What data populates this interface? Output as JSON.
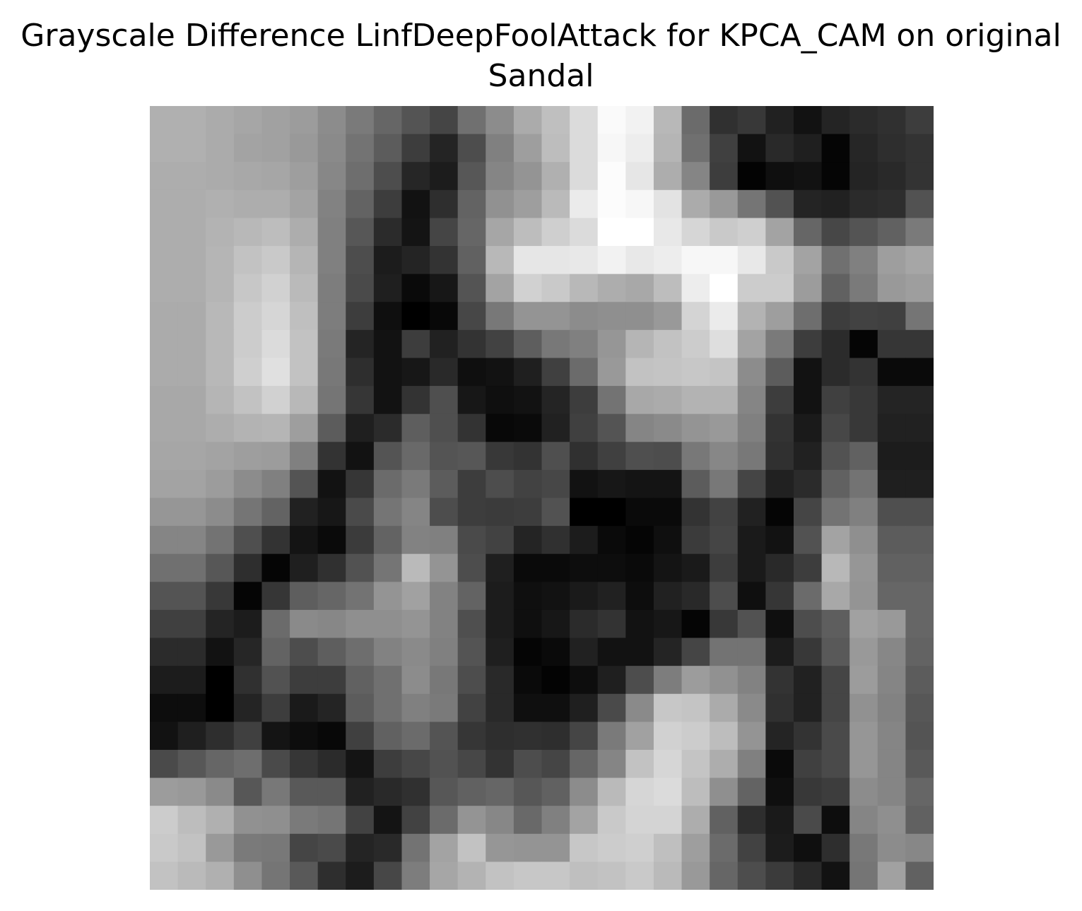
{
  "chart_data": {
    "type": "heatmap",
    "title": "Grayscale Difference LinfDeepFoolAttack for KPCA_CAM on original Sandal",
    "colormap": "gray",
    "axes_visible": false,
    "rows": 28,
    "cols": 28,
    "values": [
      [
        0.69,
        0.69,
        0.67,
        0.65,
        0.63,
        0.61,
        0.55,
        0.48,
        0.4,
        0.33,
        0.27,
        0.44,
        0.55,
        0.67,
        0.75,
        0.86,
        0.98,
        0.95,
        0.72,
        0.42,
        0.19,
        0.22,
        0.13,
        0.07,
        0.14,
        0.17,
        0.19,
        0.24
      ],
      [
        0.69,
        0.69,
        0.67,
        0.64,
        0.63,
        0.6,
        0.54,
        0.45,
        0.36,
        0.24,
        0.14,
        0.3,
        0.5,
        0.62,
        0.74,
        0.86,
        0.97,
        0.93,
        0.71,
        0.44,
        0.25,
        0.07,
        0.16,
        0.12,
        0.02,
        0.15,
        0.18,
        0.2
      ],
      [
        0.68,
        0.68,
        0.67,
        0.66,
        0.65,
        0.62,
        0.53,
        0.43,
        0.3,
        0.15,
        0.11,
        0.34,
        0.52,
        0.58,
        0.69,
        0.86,
        0.99,
        0.9,
        0.68,
        0.52,
        0.24,
        0.01,
        0.06,
        0.07,
        0.02,
        0.14,
        0.16,
        0.2
      ],
      [
        0.68,
        0.68,
        0.69,
        0.68,
        0.68,
        0.64,
        0.51,
        0.39,
        0.24,
        0.07,
        0.18,
        0.39,
        0.57,
        0.62,
        0.73,
        0.92,
        0.99,
        0.97,
        0.89,
        0.67,
        0.6,
        0.46,
        0.32,
        0.14,
        0.13,
        0.17,
        0.18,
        0.32
      ],
      [
        0.68,
        0.68,
        0.7,
        0.72,
        0.74,
        0.68,
        0.5,
        0.34,
        0.17,
        0.08,
        0.27,
        0.4,
        0.65,
        0.74,
        0.81,
        0.86,
        1.0,
        1.0,
        0.91,
        0.84,
        0.79,
        0.81,
        0.64,
        0.4,
        0.28,
        0.33,
        0.38,
        0.48
      ],
      [
        0.68,
        0.68,
        0.71,
        0.76,
        0.79,
        0.71,
        0.5,
        0.3,
        0.11,
        0.14,
        0.2,
        0.38,
        0.72,
        0.9,
        0.9,
        0.91,
        0.95,
        0.91,
        0.93,
        0.97,
        0.97,
        0.91,
        0.79,
        0.64,
        0.44,
        0.5,
        0.62,
        0.65
      ],
      [
        0.68,
        0.68,
        0.71,
        0.78,
        0.82,
        0.73,
        0.49,
        0.29,
        0.12,
        0.04,
        0.09,
        0.33,
        0.64,
        0.82,
        0.79,
        0.72,
        0.68,
        0.66,
        0.74,
        0.93,
        1.0,
        0.8,
        0.8,
        0.61,
        0.38,
        0.48,
        0.6,
        0.62
      ],
      [
        0.67,
        0.67,
        0.72,
        0.8,
        0.84,
        0.75,
        0.49,
        0.24,
        0.06,
        0.0,
        0.03,
        0.28,
        0.47,
        0.58,
        0.58,
        0.55,
        0.56,
        0.56,
        0.6,
        0.83,
        0.92,
        0.7,
        0.62,
        0.43,
        0.24,
        0.26,
        0.25,
        0.46
      ],
      [
        0.67,
        0.67,
        0.72,
        0.8,
        0.86,
        0.76,
        0.48,
        0.14,
        0.07,
        0.24,
        0.13,
        0.2,
        0.26,
        0.37,
        0.47,
        0.5,
        0.59,
        0.71,
        0.76,
        0.8,
        0.87,
        0.64,
        0.48,
        0.24,
        0.17,
        0.02,
        0.21,
        0.21
      ],
      [
        0.67,
        0.67,
        0.72,
        0.81,
        0.88,
        0.76,
        0.47,
        0.18,
        0.07,
        0.09,
        0.16,
        0.06,
        0.07,
        0.12,
        0.25,
        0.42,
        0.6,
        0.76,
        0.77,
        0.78,
        0.77,
        0.55,
        0.36,
        0.07,
        0.17,
        0.2,
        0.04,
        0.04
      ],
      [
        0.66,
        0.66,
        0.71,
        0.76,
        0.82,
        0.72,
        0.46,
        0.21,
        0.07,
        0.2,
        0.31,
        0.09,
        0.06,
        0.07,
        0.14,
        0.24,
        0.45,
        0.66,
        0.67,
        0.7,
        0.7,
        0.52,
        0.24,
        0.07,
        0.25,
        0.22,
        0.14,
        0.14
      ],
      [
        0.66,
        0.66,
        0.68,
        0.7,
        0.71,
        0.62,
        0.36,
        0.12,
        0.17,
        0.37,
        0.31,
        0.2,
        0.03,
        0.04,
        0.13,
        0.25,
        0.33,
        0.52,
        0.54,
        0.58,
        0.6,
        0.5,
        0.2,
        0.1,
        0.28,
        0.22,
        0.13,
        0.13
      ],
      [
        0.65,
        0.65,
        0.64,
        0.62,
        0.61,
        0.5,
        0.2,
        0.07,
        0.33,
        0.41,
        0.33,
        0.34,
        0.22,
        0.2,
        0.31,
        0.19,
        0.25,
        0.31,
        0.3,
        0.47,
        0.53,
        0.47,
        0.19,
        0.13,
        0.32,
        0.38,
        0.11,
        0.11
      ],
      [
        0.64,
        0.64,
        0.61,
        0.55,
        0.5,
        0.33,
        0.07,
        0.21,
        0.42,
        0.48,
        0.36,
        0.24,
        0.3,
        0.26,
        0.28,
        0.07,
        0.09,
        0.08,
        0.08,
        0.36,
        0.47,
        0.27,
        0.13,
        0.17,
        0.38,
        0.45,
        0.12,
        0.12
      ],
      [
        0.59,
        0.59,
        0.55,
        0.46,
        0.39,
        0.13,
        0.09,
        0.29,
        0.46,
        0.52,
        0.3,
        0.24,
        0.23,
        0.24,
        0.32,
        0.0,
        0.0,
        0.04,
        0.04,
        0.2,
        0.26,
        0.13,
        0.02,
        0.27,
        0.45,
        0.5,
        0.31,
        0.31
      ],
      [
        0.52,
        0.52,
        0.45,
        0.31,
        0.2,
        0.08,
        0.04,
        0.23,
        0.39,
        0.51,
        0.5,
        0.29,
        0.26,
        0.14,
        0.19,
        0.11,
        0.04,
        0.02,
        0.06,
        0.23,
        0.27,
        0.1,
        0.07,
        0.32,
        0.64,
        0.56,
        0.36,
        0.36
      ],
      [
        0.44,
        0.44,
        0.34,
        0.18,
        0.02,
        0.12,
        0.19,
        0.32,
        0.46,
        0.73,
        0.58,
        0.3,
        0.12,
        0.04,
        0.04,
        0.05,
        0.05,
        0.04,
        0.08,
        0.1,
        0.24,
        0.1,
        0.16,
        0.24,
        0.72,
        0.59,
        0.38,
        0.38
      ],
      [
        0.33,
        0.33,
        0.22,
        0.02,
        0.21,
        0.37,
        0.4,
        0.45,
        0.58,
        0.63,
        0.51,
        0.39,
        0.11,
        0.06,
        0.07,
        0.1,
        0.13,
        0.05,
        0.13,
        0.16,
        0.3,
        0.06,
        0.21,
        0.42,
        0.66,
        0.58,
        0.4,
        0.4
      ],
      [
        0.25,
        0.25,
        0.14,
        0.11,
        0.42,
        0.54,
        0.53,
        0.56,
        0.56,
        0.58,
        0.51,
        0.31,
        0.11,
        0.06,
        0.09,
        0.17,
        0.2,
        0.07,
        0.09,
        0.02,
        0.22,
        0.32,
        0.06,
        0.3,
        0.37,
        0.63,
        0.6,
        0.4
      ],
      [
        0.17,
        0.17,
        0.07,
        0.15,
        0.39,
        0.3,
        0.37,
        0.43,
        0.51,
        0.54,
        0.5,
        0.33,
        0.12,
        0.02,
        0.04,
        0.13,
        0.07,
        0.07,
        0.14,
        0.27,
        0.45,
        0.45,
        0.11,
        0.22,
        0.35,
        0.6,
        0.53,
        0.39
      ],
      [
        0.11,
        0.11,
        0.0,
        0.19,
        0.32,
        0.24,
        0.24,
        0.38,
        0.44,
        0.55,
        0.47,
        0.3,
        0.16,
        0.04,
        0.01,
        0.05,
        0.12,
        0.3,
        0.49,
        0.61,
        0.57,
        0.51,
        0.2,
        0.13,
        0.27,
        0.61,
        0.52,
        0.36
      ],
      [
        0.05,
        0.05,
        0.0,
        0.14,
        0.24,
        0.1,
        0.14,
        0.36,
        0.44,
        0.5,
        0.48,
        0.26,
        0.16,
        0.06,
        0.06,
        0.12,
        0.29,
        0.54,
        0.78,
        0.77,
        0.67,
        0.54,
        0.19,
        0.13,
        0.27,
        0.57,
        0.51,
        0.34
      ],
      [
        0.07,
        0.12,
        0.18,
        0.25,
        0.08,
        0.05,
        0.03,
        0.25,
        0.38,
        0.42,
        0.33,
        0.21,
        0.18,
        0.19,
        0.18,
        0.27,
        0.48,
        0.63,
        0.82,
        0.8,
        0.74,
        0.58,
        0.14,
        0.2,
        0.29,
        0.59,
        0.52,
        0.33
      ],
      [
        0.29,
        0.34,
        0.4,
        0.43,
        0.29,
        0.21,
        0.17,
        0.08,
        0.24,
        0.28,
        0.32,
        0.28,
        0.2,
        0.3,
        0.27,
        0.4,
        0.52,
        0.76,
        0.84,
        0.77,
        0.68,
        0.5,
        0.04,
        0.25,
        0.29,
        0.59,
        0.52,
        0.35
      ],
      [
        0.61,
        0.6,
        0.54,
        0.34,
        0.47,
        0.35,
        0.35,
        0.13,
        0.16,
        0.19,
        0.34,
        0.38,
        0.4,
        0.34,
        0.38,
        0.55,
        0.73,
        0.84,
        0.86,
        0.74,
        0.56,
        0.39,
        0.06,
        0.22,
        0.24,
        0.55,
        0.52,
        0.4
      ],
      [
        0.8,
        0.74,
        0.69,
        0.57,
        0.56,
        0.48,
        0.46,
        0.26,
        0.08,
        0.26,
        0.42,
        0.58,
        0.53,
        0.41,
        0.5,
        0.64,
        0.79,
        0.83,
        0.83,
        0.68,
        0.38,
        0.18,
        0.1,
        0.29,
        0.05,
        0.52,
        0.56,
        0.38
      ],
      [
        0.79,
        0.76,
        0.6,
        0.48,
        0.47,
        0.27,
        0.29,
        0.14,
        0.16,
        0.45,
        0.64,
        0.76,
        0.59,
        0.58,
        0.58,
        0.78,
        0.8,
        0.81,
        0.75,
        0.62,
        0.42,
        0.26,
        0.11,
        0.06,
        0.18,
        0.47,
        0.55,
        0.53
      ],
      [
        0.76,
        0.73,
        0.69,
        0.56,
        0.46,
        0.35,
        0.18,
        0.11,
        0.28,
        0.49,
        0.65,
        0.7,
        0.76,
        0.78,
        0.78,
        0.75,
        0.76,
        0.79,
        0.73,
        0.6,
        0.4,
        0.3,
        0.23,
        0.16,
        0.07,
        0.46,
        0.63,
        0.38
      ]
    ]
  }
}
